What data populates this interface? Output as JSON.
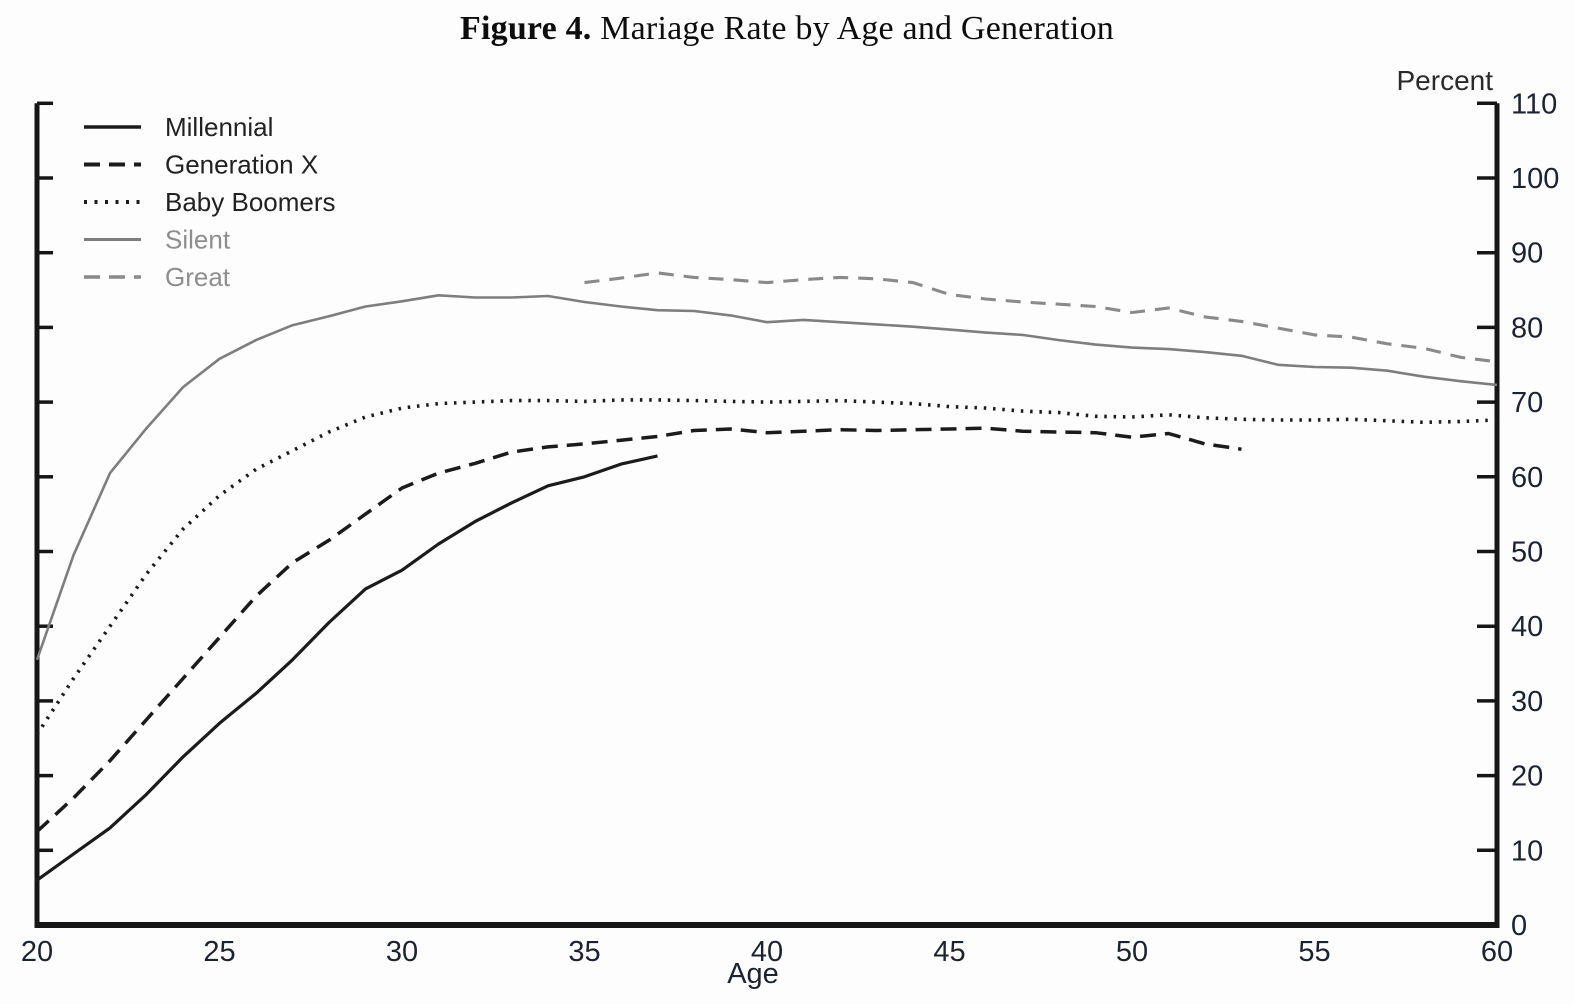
{
  "figure": {
    "title_prefix": "Figure 4.",
    "title_rest": " Mariage Rate by Age and Generation"
  },
  "axes": {
    "x_label": "Age",
    "y_label": "Percent",
    "x_ticks": [
      20,
      25,
      30,
      35,
      40,
      45,
      50,
      55,
      60
    ],
    "y_ticks": [
      0,
      10,
      20,
      30,
      40,
      50,
      60,
      70,
      80,
      90,
      100,
      110
    ]
  },
  "legend": {
    "items": [
      "Millennial",
      "Generation X",
      "Baby Boomers",
      "Silent",
      "Great"
    ]
  },
  "colors": {
    "black_series": "#1b1b1b",
    "gray_series": "#7e7e7e",
    "gray_legend_text": "#8e8e8e",
    "axis": "#161616",
    "tick_label": "#1c2330"
  },
  "chart_data": {
    "type": "line",
    "title": "Figure 4. Mariage Rate by Age and Generation",
    "xlabel": "Age",
    "ylabel": "Percent",
    "xlim": [
      20,
      60
    ],
    "ylim": [
      0,
      110
    ],
    "grid": false,
    "legend_position": "top-left",
    "series": [
      {
        "name": "Millennial",
        "style": "solid",
        "color": "#1b1b1b",
        "x": [
          20,
          21,
          22,
          23,
          24,
          25,
          26,
          27,
          28,
          29,
          30,
          31,
          32,
          33,
          34,
          35,
          36,
          37
        ],
        "y": [
          6,
          9.5,
          13,
          17.5,
          22.5,
          27,
          31,
          35.5,
          40.5,
          45,
          47.5,
          51,
          54,
          56.5,
          58.8,
          60,
          61.7,
          62.8
        ]
      },
      {
        "name": "Generation X",
        "style": "dashed",
        "color": "#1b1b1b",
        "x": [
          20,
          21,
          22,
          23,
          24,
          25,
          26,
          27,
          28,
          29,
          30,
          31,
          32,
          33,
          34,
          35,
          36,
          37,
          38,
          39,
          40,
          41,
          42,
          43,
          44,
          45,
          46,
          47,
          48,
          49,
          50,
          51,
          52,
          53
        ],
        "y": [
          12.5,
          17,
          22,
          27.5,
          33,
          38.5,
          44,
          48.5,
          51.5,
          55,
          58.5,
          60.5,
          61.8,
          63.3,
          64,
          64.4,
          64.9,
          65.4,
          66.2,
          66.4,
          65.9,
          66.1,
          66.3,
          66.2,
          66.3,
          66.4,
          66.5,
          66.1,
          66,
          65.9,
          65.3,
          65.8,
          64.4,
          63.7
        ]
      },
      {
        "name": "Baby Boomers",
        "style": "dotted",
        "color": "#1b1b1b",
        "x": [
          20,
          21,
          22,
          23,
          24,
          25,
          26,
          27,
          28,
          29,
          30,
          31,
          32,
          33,
          34,
          35,
          36,
          37,
          38,
          39,
          40,
          41,
          42,
          43,
          44,
          45,
          46,
          47,
          48,
          49,
          50,
          51,
          52,
          53,
          54,
          55,
          56,
          57,
          58,
          59,
          60
        ],
        "y": [
          25.5,
          33,
          40,
          47,
          53,
          57.5,
          61,
          63.5,
          66,
          68,
          69.2,
          69.8,
          70,
          70.2,
          70.2,
          70.1,
          70.3,
          70.3,
          70.2,
          70.1,
          70,
          70.1,
          70.2,
          70,
          69.8,
          69.4,
          69.2,
          68.8,
          68.6,
          68.1,
          68,
          68.3,
          67.9,
          67.7,
          67.6,
          67.6,
          67.7,
          67.5,
          67.3,
          67.4,
          67.6
        ]
      },
      {
        "name": "Silent",
        "style": "solid",
        "color": "#7e7e7e",
        "x": [
          20,
          21,
          22,
          23,
          24,
          25,
          26,
          27,
          28,
          29,
          30,
          31,
          32,
          33,
          34,
          35,
          36,
          37,
          38,
          39,
          40,
          41,
          42,
          43,
          44,
          45,
          46,
          47,
          48,
          49,
          50,
          51,
          52,
          53,
          54,
          55,
          56,
          57,
          58,
          59,
          60
        ],
        "y": [
          35.5,
          49.5,
          60.5,
          66.5,
          72,
          75.8,
          78.3,
          80.3,
          81.5,
          82.8,
          83.5,
          84.3,
          84,
          84,
          84.2,
          83.4,
          82.8,
          82.3,
          82.2,
          81.6,
          80.7,
          81,
          80.7,
          80.4,
          80.1,
          79.7,
          79.3,
          79,
          78.3,
          77.7,
          77.3,
          77.1,
          76.7,
          76.2,
          75,
          74.7,
          74.6,
          74.2,
          73.4,
          72.8,
          72.3
        ]
      },
      {
        "name": "Great",
        "style": "dashed",
        "color": "#8a8a8a",
        "x": [
          35,
          36,
          37,
          38,
          39,
          40,
          41,
          42,
          43,
          44,
          45,
          46,
          47,
          48,
          49,
          50,
          51,
          52,
          53,
          54,
          55,
          56,
          57,
          58,
          59,
          60
        ],
        "y": [
          86,
          86.6,
          87.3,
          86.7,
          86.4,
          86,
          86.4,
          86.7,
          86.5,
          86,
          84.4,
          83.8,
          83.4,
          83.1,
          82.8,
          82,
          82.6,
          81.4,
          80.8,
          79.9,
          79,
          78.7,
          77.8,
          77.2,
          76,
          75.4
        ]
      }
    ]
  }
}
